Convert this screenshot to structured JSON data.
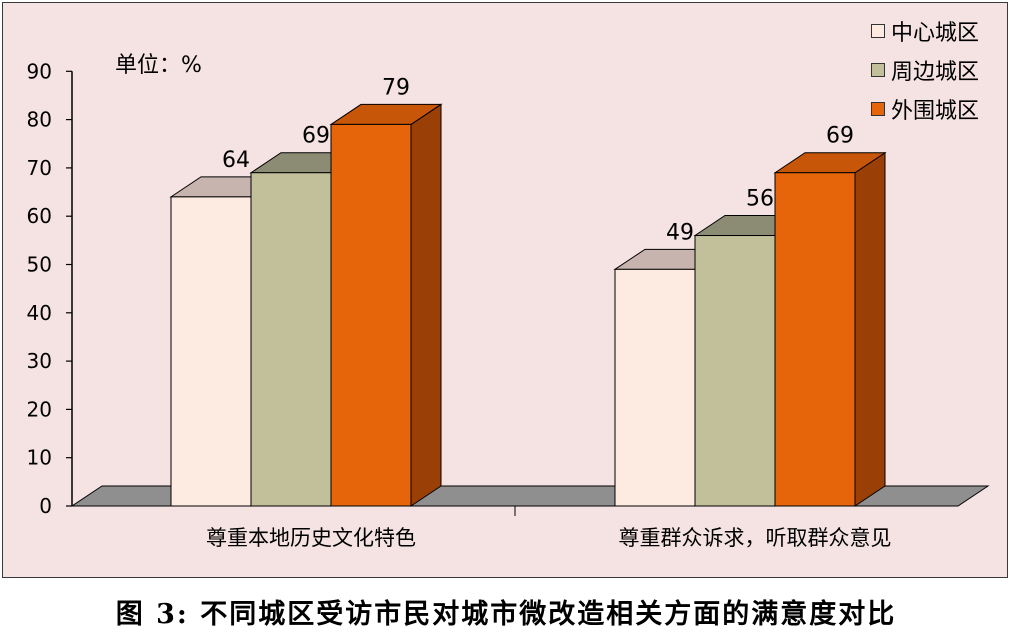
{
  "chart_data": {
    "type": "bar",
    "categories": [
      "尊重本地历史文化特色",
      "尊重群众诉求，听取群众意见"
    ],
    "series": [
      {
        "name": "中心城区",
        "values": [
          64,
          49
        ],
        "color": "#fdeae0",
        "side_color": "#c8b4ae",
        "top_color": "#c8b4ae"
      },
      {
        "name": "周边城区",
        "values": [
          69,
          56
        ],
        "color": "#c2c09a",
        "side_color": "#8c8c74",
        "top_color": "#8c8c74"
      },
      {
        "name": "外围城区",
        "values": [
          79,
          69
        ],
        "color": "#e6650a",
        "side_color": "#9a4006",
        "top_color": "#c85608"
      }
    ],
    "ylim": [
      0,
      90
    ],
    "yticks": [
      "0",
      "10",
      "20",
      "30",
      "40",
      "50",
      "60",
      "70",
      "80",
      "90"
    ],
    "unit": "单位：%",
    "legend_position": "top-right",
    "grid": false,
    "colors": {
      "background": "#f5e3e3",
      "floor": "#8f8f8f"
    }
  },
  "caption": "图 3:  不同城区受访市民对城市微改造相关方面的满意度对比"
}
